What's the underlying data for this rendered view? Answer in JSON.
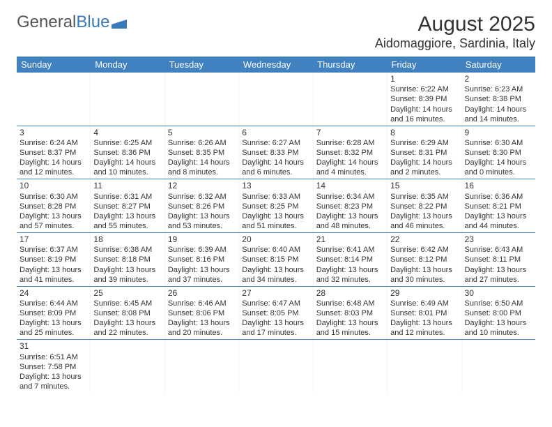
{
  "logo": {
    "text_gray": "General",
    "text_blue": "Blue"
  },
  "title": {
    "month": "August 2025",
    "location": "Aidomaggiore, Sardinia, Italy"
  },
  "colors": {
    "header_bg": "#4181bf",
    "header_text": "#ffffff",
    "border": "#4181bf",
    "cell_divider": "#eef3f8",
    "text": "#333333",
    "logo_gray": "#555555",
    "logo_blue": "#3a7ab8"
  },
  "weekdays": [
    "Sunday",
    "Monday",
    "Tuesday",
    "Wednesday",
    "Thursday",
    "Friday",
    "Saturday"
  ],
  "weeks": [
    [
      null,
      null,
      null,
      null,
      null,
      {
        "n": "1",
        "sr": "Sunrise: 6:22 AM",
        "ss": "Sunset: 8:39 PM",
        "dl": "Daylight: 14 hours and 16 minutes."
      },
      {
        "n": "2",
        "sr": "Sunrise: 6:23 AM",
        "ss": "Sunset: 8:38 PM",
        "dl": "Daylight: 14 hours and 14 minutes."
      }
    ],
    [
      {
        "n": "3",
        "sr": "Sunrise: 6:24 AM",
        "ss": "Sunset: 8:37 PM",
        "dl": "Daylight: 14 hours and 12 minutes."
      },
      {
        "n": "4",
        "sr": "Sunrise: 6:25 AM",
        "ss": "Sunset: 8:36 PM",
        "dl": "Daylight: 14 hours and 10 minutes."
      },
      {
        "n": "5",
        "sr": "Sunrise: 6:26 AM",
        "ss": "Sunset: 8:35 PM",
        "dl": "Daylight: 14 hours and 8 minutes."
      },
      {
        "n": "6",
        "sr": "Sunrise: 6:27 AM",
        "ss": "Sunset: 8:33 PM",
        "dl": "Daylight: 14 hours and 6 minutes."
      },
      {
        "n": "7",
        "sr": "Sunrise: 6:28 AM",
        "ss": "Sunset: 8:32 PM",
        "dl": "Daylight: 14 hours and 4 minutes."
      },
      {
        "n": "8",
        "sr": "Sunrise: 6:29 AM",
        "ss": "Sunset: 8:31 PM",
        "dl": "Daylight: 14 hours and 2 minutes."
      },
      {
        "n": "9",
        "sr": "Sunrise: 6:30 AM",
        "ss": "Sunset: 8:30 PM",
        "dl": "Daylight: 14 hours and 0 minutes."
      }
    ],
    [
      {
        "n": "10",
        "sr": "Sunrise: 6:30 AM",
        "ss": "Sunset: 8:28 PM",
        "dl": "Daylight: 13 hours and 57 minutes."
      },
      {
        "n": "11",
        "sr": "Sunrise: 6:31 AM",
        "ss": "Sunset: 8:27 PM",
        "dl": "Daylight: 13 hours and 55 minutes."
      },
      {
        "n": "12",
        "sr": "Sunrise: 6:32 AM",
        "ss": "Sunset: 8:26 PM",
        "dl": "Daylight: 13 hours and 53 minutes."
      },
      {
        "n": "13",
        "sr": "Sunrise: 6:33 AM",
        "ss": "Sunset: 8:25 PM",
        "dl": "Daylight: 13 hours and 51 minutes."
      },
      {
        "n": "14",
        "sr": "Sunrise: 6:34 AM",
        "ss": "Sunset: 8:23 PM",
        "dl": "Daylight: 13 hours and 48 minutes."
      },
      {
        "n": "15",
        "sr": "Sunrise: 6:35 AM",
        "ss": "Sunset: 8:22 PM",
        "dl": "Daylight: 13 hours and 46 minutes."
      },
      {
        "n": "16",
        "sr": "Sunrise: 6:36 AM",
        "ss": "Sunset: 8:21 PM",
        "dl": "Daylight: 13 hours and 44 minutes."
      }
    ],
    [
      {
        "n": "17",
        "sr": "Sunrise: 6:37 AM",
        "ss": "Sunset: 8:19 PM",
        "dl": "Daylight: 13 hours and 41 minutes."
      },
      {
        "n": "18",
        "sr": "Sunrise: 6:38 AM",
        "ss": "Sunset: 8:18 PM",
        "dl": "Daylight: 13 hours and 39 minutes."
      },
      {
        "n": "19",
        "sr": "Sunrise: 6:39 AM",
        "ss": "Sunset: 8:16 PM",
        "dl": "Daylight: 13 hours and 37 minutes."
      },
      {
        "n": "20",
        "sr": "Sunrise: 6:40 AM",
        "ss": "Sunset: 8:15 PM",
        "dl": "Daylight: 13 hours and 34 minutes."
      },
      {
        "n": "21",
        "sr": "Sunrise: 6:41 AM",
        "ss": "Sunset: 8:14 PM",
        "dl": "Daylight: 13 hours and 32 minutes."
      },
      {
        "n": "22",
        "sr": "Sunrise: 6:42 AM",
        "ss": "Sunset: 8:12 PM",
        "dl": "Daylight: 13 hours and 30 minutes."
      },
      {
        "n": "23",
        "sr": "Sunrise: 6:43 AM",
        "ss": "Sunset: 8:11 PM",
        "dl": "Daylight: 13 hours and 27 minutes."
      }
    ],
    [
      {
        "n": "24",
        "sr": "Sunrise: 6:44 AM",
        "ss": "Sunset: 8:09 PM",
        "dl": "Daylight: 13 hours and 25 minutes."
      },
      {
        "n": "25",
        "sr": "Sunrise: 6:45 AM",
        "ss": "Sunset: 8:08 PM",
        "dl": "Daylight: 13 hours and 22 minutes."
      },
      {
        "n": "26",
        "sr": "Sunrise: 6:46 AM",
        "ss": "Sunset: 8:06 PM",
        "dl": "Daylight: 13 hours and 20 minutes."
      },
      {
        "n": "27",
        "sr": "Sunrise: 6:47 AM",
        "ss": "Sunset: 8:05 PM",
        "dl": "Daylight: 13 hours and 17 minutes."
      },
      {
        "n": "28",
        "sr": "Sunrise: 6:48 AM",
        "ss": "Sunset: 8:03 PM",
        "dl": "Daylight: 13 hours and 15 minutes."
      },
      {
        "n": "29",
        "sr": "Sunrise: 6:49 AM",
        "ss": "Sunset: 8:01 PM",
        "dl": "Daylight: 13 hours and 12 minutes."
      },
      {
        "n": "30",
        "sr": "Sunrise: 6:50 AM",
        "ss": "Sunset: 8:00 PM",
        "dl": "Daylight: 13 hours and 10 minutes."
      }
    ],
    [
      {
        "n": "31",
        "sr": "Sunrise: 6:51 AM",
        "ss": "Sunset: 7:58 PM",
        "dl": "Daylight: 13 hours and 7 minutes."
      },
      null,
      null,
      null,
      null,
      null,
      null
    ]
  ]
}
